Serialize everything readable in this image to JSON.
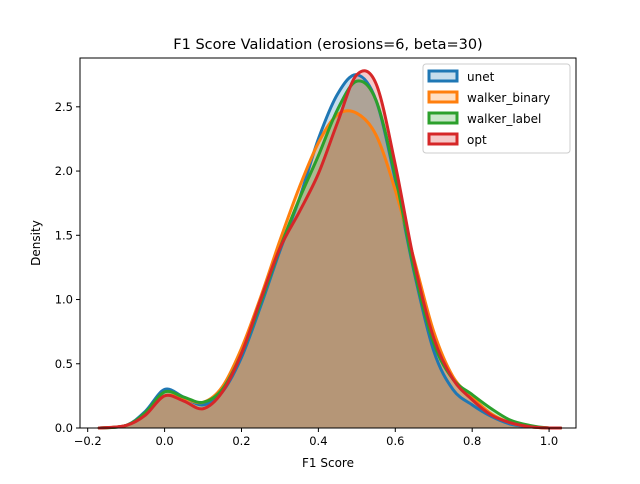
{
  "chart_data": {
    "type": "area",
    "title": "F1 Score Validation (erosions=6, beta=30)",
    "xlabel": "F1 Score",
    "ylabel": "Density",
    "xlim": [
      -0.22,
      1.07
    ],
    "ylim": [
      0,
      2.88
    ],
    "xticks": [
      -0.2,
      0.0,
      0.2,
      0.4,
      0.6,
      0.8,
      1.0
    ],
    "xtick_labels": [
      "−0.2",
      "0.0",
      "0.2",
      "0.4",
      "0.6",
      "0.8",
      "1.0"
    ],
    "yticks": [
      0.0,
      0.5,
      1.0,
      1.5,
      2.0,
      2.5
    ],
    "ytick_labels": [
      "0.0",
      "0.5",
      "1.0",
      "1.5",
      "2.0",
      "2.5"
    ],
    "grid": false,
    "legend_position": "top-right",
    "series": [
      {
        "name": "unet",
        "color": "#1f77b4",
        "x": [
          -0.17,
          -0.1,
          -0.05,
          0.0,
          0.05,
          0.1,
          0.15,
          0.2,
          0.25,
          0.3,
          0.35,
          0.4,
          0.45,
          0.5,
          0.55,
          0.6,
          0.65,
          0.7,
          0.75,
          0.8,
          0.85,
          0.9,
          0.95,
          1.0,
          1.03
        ],
        "y": [
          0.0,
          0.02,
          0.13,
          0.3,
          0.24,
          0.18,
          0.28,
          0.55,
          0.95,
          1.38,
          1.78,
          2.25,
          2.6,
          2.75,
          2.55,
          1.93,
          1.2,
          0.6,
          0.3,
          0.18,
          0.09,
          0.03,
          0.01,
          0.0,
          0.0
        ]
      },
      {
        "name": "walker_binary",
        "color": "#ff7f0e",
        "x": [
          -0.17,
          -0.1,
          -0.05,
          0.0,
          0.05,
          0.1,
          0.15,
          0.2,
          0.25,
          0.3,
          0.35,
          0.4,
          0.45,
          0.5,
          0.55,
          0.6,
          0.65,
          0.7,
          0.75,
          0.8,
          0.85,
          0.9,
          0.95,
          1.0,
          1.03
        ],
        "y": [
          0.0,
          0.02,
          0.11,
          0.25,
          0.23,
          0.2,
          0.32,
          0.62,
          1.02,
          1.46,
          1.87,
          2.22,
          2.44,
          2.45,
          2.28,
          1.85,
          1.3,
          0.75,
          0.4,
          0.24,
          0.11,
          0.04,
          0.01,
          0.0,
          0.0
        ]
      },
      {
        "name": "walker_label",
        "color": "#2ca02c",
        "x": [
          -0.17,
          -0.1,
          -0.05,
          0.0,
          0.05,
          0.1,
          0.15,
          0.2,
          0.25,
          0.3,
          0.35,
          0.4,
          0.45,
          0.5,
          0.55,
          0.6,
          0.65,
          0.7,
          0.75,
          0.8,
          0.85,
          0.9,
          0.95,
          1.0,
          1.03
        ],
        "y": [
          0.0,
          0.02,
          0.12,
          0.28,
          0.24,
          0.2,
          0.3,
          0.58,
          0.98,
          1.4,
          1.78,
          2.12,
          2.48,
          2.7,
          2.55,
          1.96,
          1.22,
          0.66,
          0.38,
          0.26,
          0.15,
          0.06,
          0.02,
          0.0,
          0.0
        ]
      },
      {
        "name": "opt",
        "color": "#d62728",
        "x": [
          -0.17,
          -0.1,
          -0.05,
          0.0,
          0.05,
          0.1,
          0.15,
          0.2,
          0.25,
          0.3,
          0.35,
          0.4,
          0.45,
          0.5,
          0.55,
          0.6,
          0.65,
          0.7,
          0.75,
          0.8,
          0.85,
          0.9,
          0.95,
          1.0,
          1.03
        ],
        "y": [
          0.0,
          0.02,
          0.1,
          0.25,
          0.21,
          0.15,
          0.28,
          0.58,
          1.0,
          1.4,
          1.68,
          1.98,
          2.38,
          2.75,
          2.68,
          2.05,
          1.28,
          0.7,
          0.38,
          0.22,
          0.1,
          0.04,
          0.01,
          0.0,
          0.0
        ]
      }
    ]
  }
}
